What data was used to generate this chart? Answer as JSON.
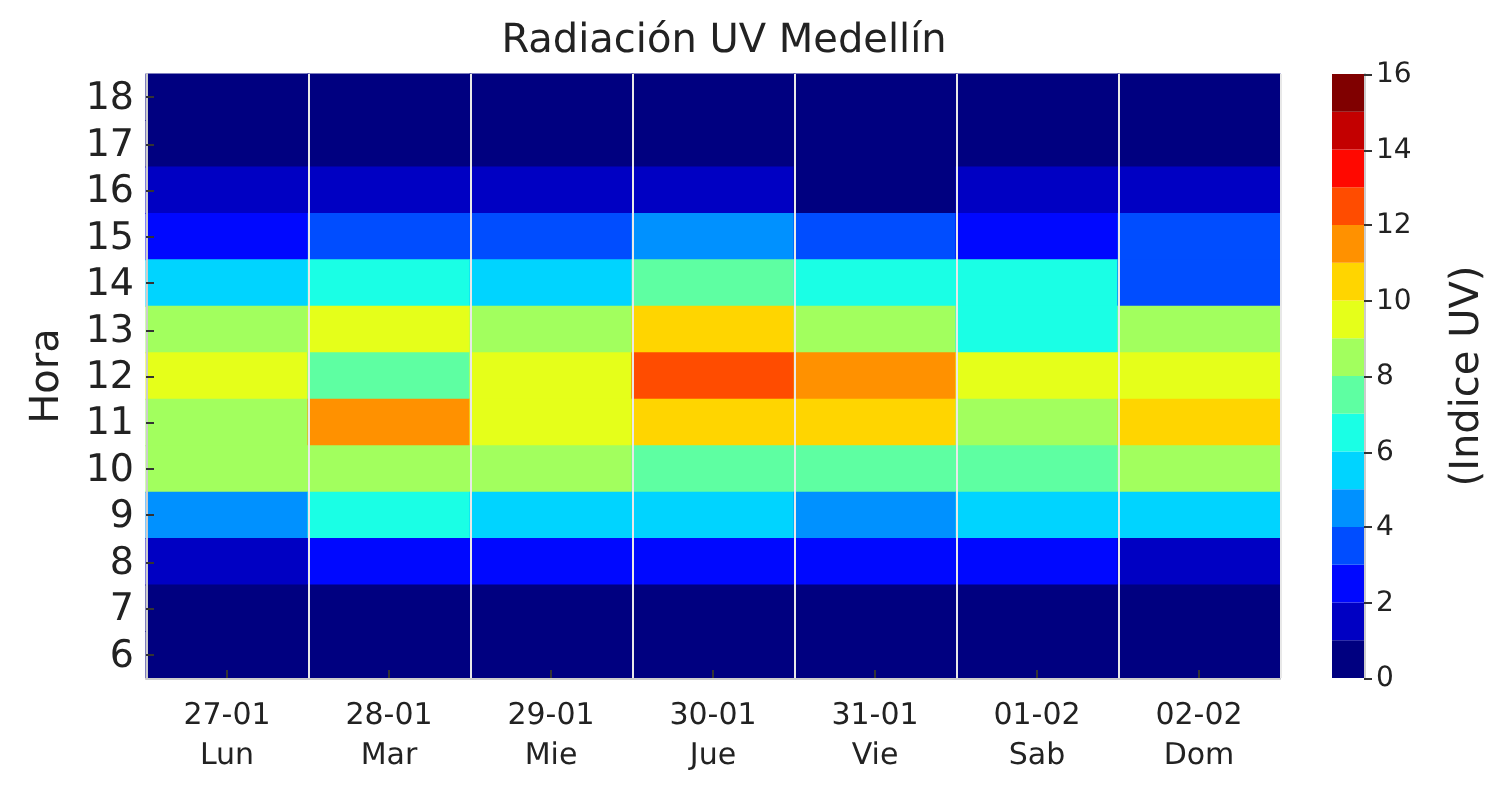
{
  "chart_data": {
    "type": "heatmap",
    "title": "Radiación UV Medellín",
    "ylabel": "Hora",
    "clabel": "(Indice UV)",
    "categories": [
      "27-01\nLun",
      "28-01\nMar",
      "29-01\nMie",
      "30-01\nJue",
      "31-01\nVie",
      "01-02\nSab",
      "02-02\nDom"
    ],
    "y_categories": [
      "18",
      "17",
      "16",
      "15",
      "14",
      "13",
      "12",
      "11",
      "10",
      "9",
      "8",
      "7",
      "6"
    ],
    "cells": [
      [
        0,
        0,
        0,
        0,
        0,
        0,
        0
      ],
      [
        0,
        0,
        0,
        0,
        0,
        0,
        0
      ],
      [
        1,
        1,
        1,
        1,
        0,
        1,
        1
      ],
      [
        2,
        3,
        3,
        4,
        3,
        2,
        3
      ],
      [
        5,
        6,
        5,
        7,
        6,
        6,
        3
      ],
      [
        8,
        9,
        8,
        10,
        8,
        6,
        8
      ],
      [
        9,
        7,
        9,
        12,
        11,
        9,
        9
      ],
      [
        8,
        11,
        9,
        10,
        10,
        8,
        10
      ],
      [
        8,
        8,
        8,
        7,
        7,
        7,
        8
      ],
      [
        4,
        6,
        5,
        5,
        4,
        5,
        5
      ],
      [
        1,
        2,
        2,
        2,
        2,
        2,
        1
      ],
      [
        0,
        0,
        0,
        0,
        0,
        0,
        0
      ],
      [
        0,
        0,
        0,
        0,
        0,
        0,
        0
      ]
    ],
    "clim": [
      0,
      16
    ],
    "cticks": [
      0,
      2,
      4,
      6,
      8,
      10,
      12,
      14,
      16
    ],
    "grid": "x"
  }
}
